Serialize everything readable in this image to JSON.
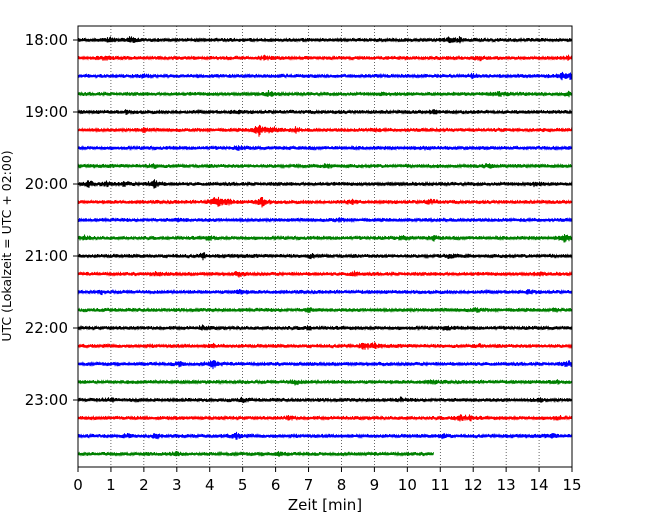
{
  "chart_data": {
    "type": "line",
    "title": "",
    "xlabel": "Zeit  [min]",
    "ylabel": "UTC (Lokalzeit = UTC + 02:00)",
    "xlim": [
      0,
      15
    ],
    "x_ticks": [
      "0",
      "1",
      "2",
      "3",
      "4",
      "5",
      "6",
      "7",
      "8",
      "9",
      "10",
      "11",
      "12",
      "13",
      "14",
      "15"
    ],
    "y_tick_labels": [
      "18:00",
      "19:00",
      "20:00",
      "21:00",
      "22:00",
      "23:00"
    ],
    "grid": "vertical dotted",
    "trace_interval_min": 15,
    "trace_colors": [
      "#000000",
      "#ff0000",
      "#0000ff",
      "#008000"
    ],
    "traces": [
      {
        "start": "18:00",
        "color": "#000000",
        "duration_min": 15,
        "events": [
          [
            1.0,
            2.0
          ],
          [
            1.6,
            2.5
          ],
          [
            11.3,
            3.0
          ],
          [
            11.6,
            2.0
          ]
        ]
      },
      {
        "start": "18:15",
        "color": "#ff0000",
        "duration_min": 15,
        "events": [
          [
            0.8,
            1.5
          ],
          [
            5.7,
            1.6
          ],
          [
            12.2,
            1.8
          ],
          [
            14.9,
            1.6
          ]
        ]
      },
      {
        "start": "18:30",
        "color": "#0000ff",
        "duration_min": 15,
        "events": [
          [
            2.0,
            1.8
          ],
          [
            12.0,
            1.8
          ],
          [
            14.7,
            2.8
          ],
          [
            14.95,
            2.5
          ]
        ]
      },
      {
        "start": "18:45",
        "color": "#008000",
        "duration_min": 15,
        "events": [
          [
            5.8,
            2.2
          ],
          [
            9.2,
            1.6
          ],
          [
            12.8,
            1.8
          ],
          [
            14.9,
            1.4
          ]
        ]
      },
      {
        "start": "19:00",
        "color": "#000000",
        "duration_min": 15,
        "events": [
          [
            1.5,
            1.4
          ],
          [
            4.8,
            1.4
          ],
          [
            10.8,
            1.5
          ]
        ]
      },
      {
        "start": "19:15",
        "color": "#ff0000",
        "duration_min": 15,
        "events": [
          [
            2.0,
            1.6
          ],
          [
            5.5,
            6.0
          ],
          [
            5.9,
            3.5
          ],
          [
            6.6,
            2.0
          ],
          [
            9.0,
            1.4
          ]
        ]
      },
      {
        "start": "19:30",
        "color": "#0000ff",
        "duration_min": 15,
        "events": [
          [
            4.9,
            1.4
          ],
          [
            10.5,
            1.5
          ]
        ]
      },
      {
        "start": "19:45",
        "color": "#008000",
        "duration_min": 15,
        "events": [
          [
            2.3,
            1.6
          ],
          [
            7.6,
            1.6
          ],
          [
            12.5,
            1.5
          ]
        ]
      },
      {
        "start": "20:00",
        "color": "#000000",
        "duration_min": 15,
        "events": [
          [
            0.3,
            3.0
          ],
          [
            0.9,
            2.5
          ],
          [
            1.4,
            2.0
          ],
          [
            2.3,
            4.0
          ],
          [
            13.9,
            1.8
          ]
        ]
      },
      {
        "start": "20:15",
        "color": "#ff0000",
        "duration_min": 15,
        "events": [
          [
            4.1,
            2.8
          ],
          [
            4.3,
            3.5
          ],
          [
            4.6,
            2.0
          ],
          [
            5.6,
            4.5
          ],
          [
            8.3,
            2.2
          ],
          [
            10.7,
            2.0
          ]
        ]
      },
      {
        "start": "20:30",
        "color": "#0000ff",
        "duration_min": 15,
        "events": [
          [
            3.1,
            1.3
          ],
          [
            7.9,
            1.3
          ]
        ]
      },
      {
        "start": "20:45",
        "color": "#008000",
        "duration_min": 15,
        "events": [
          [
            0.2,
            2.0
          ],
          [
            4.0,
            1.6
          ],
          [
            9.9,
            2.2
          ],
          [
            10.8,
            1.8
          ],
          [
            14.8,
            5.0
          ]
        ]
      },
      {
        "start": "21:00",
        "color": "#000000",
        "duration_min": 15,
        "events": [
          [
            3.8,
            2.4
          ],
          [
            7.1,
            1.6
          ],
          [
            11.3,
            1.8
          ]
        ]
      },
      {
        "start": "21:15",
        "color": "#ff0000",
        "duration_min": 15,
        "events": [
          [
            2.4,
            1.6
          ],
          [
            4.9,
            1.8
          ],
          [
            8.4,
            1.5
          ],
          [
            14.0,
            1.6
          ]
        ]
      },
      {
        "start": "21:30",
        "color": "#0000ff",
        "duration_min": 15,
        "events": [
          [
            0.7,
            1.4
          ],
          [
            4.9,
            1.8
          ],
          [
            13.7,
            1.5
          ]
        ]
      },
      {
        "start": "21:45",
        "color": "#008000",
        "duration_min": 15,
        "events": [
          [
            7.0,
            1.5
          ],
          [
            12.1,
            1.6
          ],
          [
            14.5,
            1.4
          ]
        ]
      },
      {
        "start": "22:00",
        "color": "#000000",
        "duration_min": 15,
        "events": [
          [
            3.8,
            1.8
          ],
          [
            7.0,
            1.4
          ],
          [
            11.2,
            1.4
          ]
        ]
      },
      {
        "start": "22:15",
        "color": "#ff0000",
        "duration_min": 15,
        "events": [
          [
            4.1,
            2.0
          ],
          [
            8.7,
            3.0
          ],
          [
            9.0,
            2.2
          ],
          [
            12.2,
            1.5
          ]
        ]
      },
      {
        "start": "22:30",
        "color": "#0000ff",
        "duration_min": 15,
        "events": [
          [
            3.1,
            2.0
          ],
          [
            4.1,
            3.8
          ],
          [
            14.9,
            2.4
          ]
        ]
      },
      {
        "start": "22:45",
        "color": "#008000",
        "duration_min": 15,
        "events": [
          [
            6.6,
            2.0
          ],
          [
            10.8,
            1.5
          ],
          [
            14.5,
            1.4
          ]
        ]
      },
      {
        "start": "23:00",
        "color": "#000000",
        "duration_min": 15,
        "events": [
          [
            1.0,
            2.0
          ],
          [
            5.0,
            1.6
          ],
          [
            9.8,
            1.6
          ],
          [
            14.0,
            2.0
          ]
        ]
      },
      {
        "start": "23:15",
        "color": "#ff0000",
        "duration_min": 15,
        "events": [
          [
            6.4,
            1.6
          ],
          [
            11.6,
            3.0
          ],
          [
            11.9,
            2.0
          ],
          [
            14.6,
            1.5
          ]
        ]
      },
      {
        "start": "23:30",
        "color": "#0000ff",
        "duration_min": 15,
        "events": [
          [
            1.5,
            1.5
          ],
          [
            2.4,
            2.0
          ],
          [
            4.8,
            2.6
          ],
          [
            11.1,
            1.8
          ],
          [
            14.4,
            1.5
          ]
        ]
      },
      {
        "start": "23:45",
        "color": "#008000",
        "duration_min": 10.8,
        "events": [
          [
            3.0,
            1.4
          ],
          [
            6.1,
            1.4
          ]
        ]
      }
    ]
  }
}
